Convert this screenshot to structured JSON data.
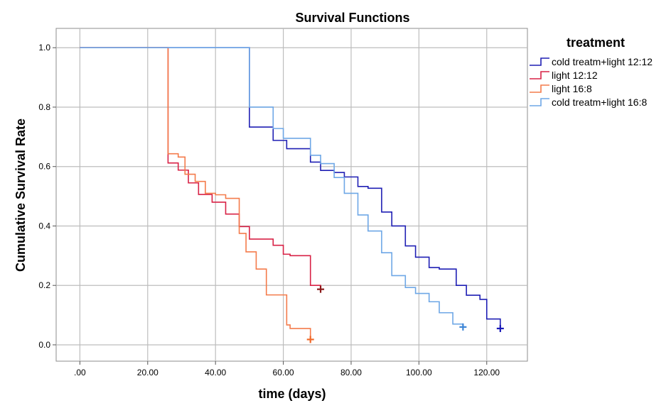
{
  "chart_data": {
    "type": "line",
    "step": true,
    "title": "Survival Functions",
    "xlabel": "time (days)",
    "ylabel": "Cumulative Survival Rate",
    "xlim": [
      -7,
      132
    ],
    "ylim": [
      -0.055,
      1.065
    ],
    "xticks": [
      0,
      20,
      40,
      60,
      80,
      100,
      120
    ],
    "xtick_labels": [
      ".00",
      "20.00",
      "40.00",
      "60.00",
      "80.00",
      "100.00",
      "120.00"
    ],
    "yticks": [
      0,
      0.2,
      0.4,
      0.6,
      0.8,
      1.0
    ],
    "ytick_labels": [
      "0.0",
      "0.2",
      "0.4",
      "0.6",
      "0.8",
      "1.0"
    ],
    "grid": true,
    "legend_title": "treatment",
    "legend_position": "right",
    "series": [
      {
        "name": "cold treatm+light 12:12",
        "color": "#1f1fb4",
        "censor_color": "#1a1ab8",
        "x": [
          0,
          50,
          57,
          61,
          68,
          71,
          75,
          78,
          82,
          85,
          89,
          92,
          96,
          99,
          103,
          106,
          111,
          114,
          118,
          120,
          124
        ],
        "y": [
          1.0,
          0.733,
          0.688,
          0.66,
          0.615,
          0.587,
          0.58,
          0.565,
          0.533,
          0.527,
          0.447,
          0.4,
          0.333,
          0.295,
          0.26,
          0.255,
          0.2,
          0.167,
          0.153,
          0.087,
          0.055
        ],
        "censor": [
          [
            124,
            0.055
          ]
        ]
      },
      {
        "name": "light 12:12",
        "color": "#d82246",
        "censor_color": "#8b1a1a",
        "x": [
          0,
          26,
          29,
          32,
          35,
          39,
          43,
          47,
          50,
          57,
          60,
          62,
          68,
          71
        ],
        "y": [
          1.0,
          0.612,
          0.588,
          0.545,
          0.506,
          0.48,
          0.44,
          0.398,
          0.356,
          0.335,
          0.305,
          0.3,
          0.2,
          0.19
        ],
        "censor": [
          [
            71,
            0.187
          ]
        ]
      },
      {
        "name": "light 16:8",
        "color": "#f47b4b",
        "censor_color": "#f06a2a",
        "x": [
          0,
          26,
          29,
          31,
          34,
          37,
          40,
          43,
          47,
          49,
          52,
          55,
          57,
          61,
          62,
          64,
          68
        ],
        "y": [
          1.0,
          0.643,
          0.632,
          0.574,
          0.55,
          0.51,
          0.505,
          0.493,
          0.375,
          0.313,
          0.255,
          0.168,
          0.168,
          0.067,
          0.055,
          0.055,
          0.02
        ],
        "censor": [
          [
            68,
            0.018
          ]
        ]
      },
      {
        "name": "cold treatm+light 16:8",
        "color": "#6ea7e6",
        "censor_color": "#3d85d6",
        "x": [
          0,
          50,
          57,
          60,
          62,
          68,
          71,
          75,
          78,
          82,
          85,
          89,
          92,
          96,
          99,
          103,
          106,
          110,
          113
        ],
        "y": [
          1.0,
          0.8,
          0.728,
          0.695,
          0.695,
          0.638,
          0.61,
          0.563,
          0.51,
          0.437,
          0.383,
          0.31,
          0.233,
          0.193,
          0.173,
          0.145,
          0.108,
          0.07,
          0.06
        ],
        "censor": [
          [
            113,
            0.06
          ]
        ]
      }
    ]
  }
}
